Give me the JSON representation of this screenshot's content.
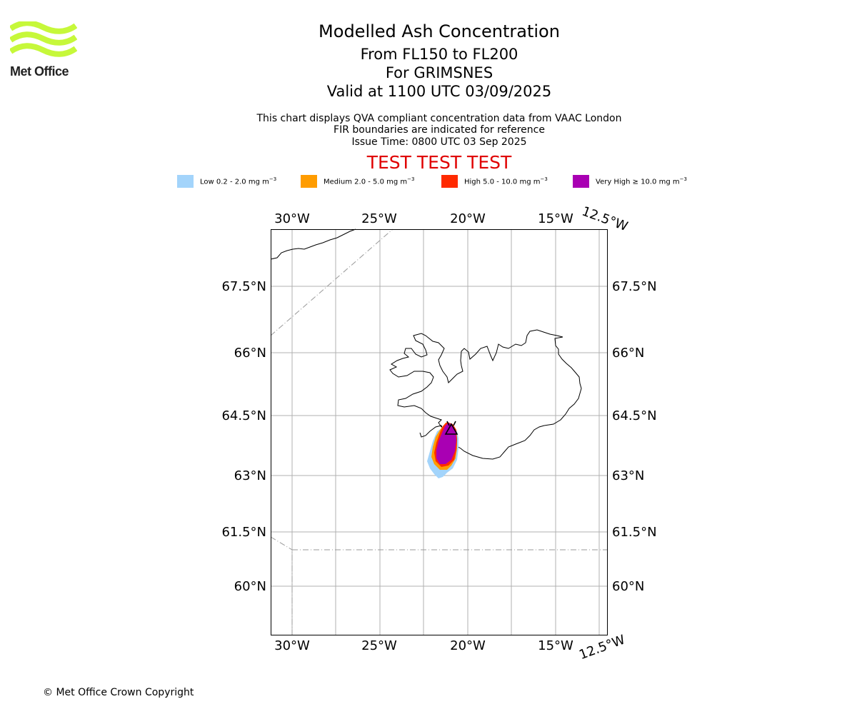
{
  "logo": {
    "name": "Met Office"
  },
  "title": {
    "main": "Modelled Ash Concentration",
    "levels": "From FL150 to FL200",
    "volcano": "For GRIMSNES",
    "valid": "Valid at 1100 UTC 03/09/2025"
  },
  "description": {
    "line1": "This chart displays QVA compliant concentration data from VAAC London",
    "line2": "FIR boundaries are indicated for reference",
    "line3": "Issue Time: 0800 UTC 03 Sep 2025"
  },
  "test_banner": "TEST TEST TEST",
  "legend": [
    {
      "label": "Low 0.2 - 2.0 mg m",
      "color": "#a3d4fb"
    },
    {
      "label": "Medium 2.0 - 5.0 mg m",
      "color": "#ff9c00"
    },
    {
      "label": "High 5.0 - 10.0 mg m",
      "color": "#ff2a00"
    },
    {
      "label": "Very High ≥ 10.0 mg m",
      "color": "#a900b3"
    }
  ],
  "legend_unit_exponent": "−3",
  "map": {
    "lon_labels": [
      "30°W",
      "25°W",
      "20°W",
      "15°W"
    ],
    "lon_label_corner": "12.5°W",
    "lat_labels": [
      "67.5°N",
      "66°N",
      "64.5°N",
      "63°N",
      "61.5°N",
      "60°N"
    ],
    "volcano_marker": "GRIMSNES"
  },
  "copyright": "© Met Office Crown Copyright"
}
